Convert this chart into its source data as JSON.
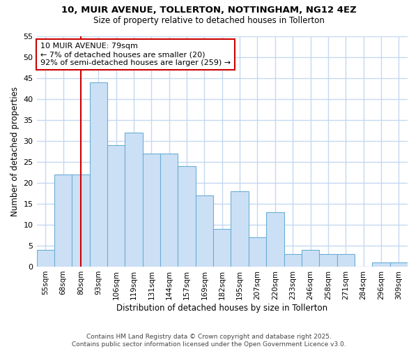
{
  "title1": "10, MUIR AVENUE, TOLLERTON, NOTTINGHAM, NG12 4EZ",
  "title2": "Size of property relative to detached houses in Tollerton",
  "xlabel": "Distribution of detached houses by size in Tollerton",
  "ylabel": "Number of detached properties",
  "categories": [
    "55sqm",
    "68sqm",
    "80sqm",
    "93sqm",
    "106sqm",
    "119sqm",
    "131sqm",
    "144sqm",
    "157sqm",
    "169sqm",
    "182sqm",
    "195sqm",
    "207sqm",
    "220sqm",
    "233sqm",
    "246sqm",
    "258sqm",
    "271sqm",
    "284sqm",
    "296sqm",
    "309sqm"
  ],
  "values": [
    4,
    22,
    22,
    44,
    29,
    32,
    27,
    27,
    24,
    17,
    9,
    18,
    7,
    13,
    3,
    4,
    3,
    3,
    0,
    1,
    1
  ],
  "bar_color": "#cce0f5",
  "bar_edge_color": "#6aaed6",
  "marker_label": "10 MUIR AVENUE: 79sqm",
  "annotation_line1": "← 7% of detached houses are smaller (20)",
  "annotation_line2": "92% of semi-detached houses are larger (259) →",
  "vline_x_index": 2,
  "annotation_box_facecolor": "#ffffff",
  "annotation_box_edgecolor": "#cc0000",
  "vline_color": "#cc0000",
  "bg_color": "#ffffff",
  "grid_color": "#c5d8f0",
  "footer1": "Contains HM Land Registry data © Crown copyright and database right 2025.",
  "footer2": "Contains public sector information licensed under the Open Government Licence v3.0.",
  "ylim": [
    0,
    55
  ],
  "yticks": [
    0,
    5,
    10,
    15,
    20,
    25,
    30,
    35,
    40,
    45,
    50,
    55
  ]
}
